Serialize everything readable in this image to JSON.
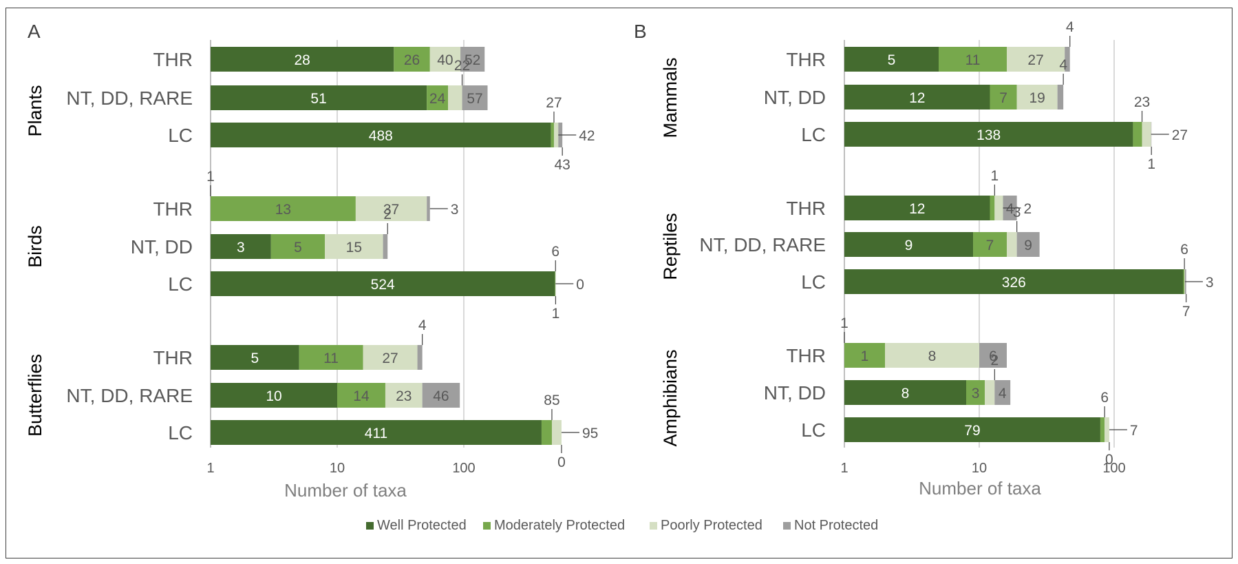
{
  "colors": {
    "well": "#446b2f",
    "moderate": "#77a84c",
    "poor": "#d5dfc3",
    "not": "#9e9e9e",
    "grid": "#d9d9d9"
  },
  "legend": [
    "Well Protected",
    "Moderately Protected",
    "Poorly Protected",
    "Not Protected"
  ],
  "chart_data": [
    {
      "panel": "A",
      "type": "bar",
      "orientation": "horizontal",
      "stacked": true,
      "xscale": "log10",
      "xlim": [
        1,
        1000
      ],
      "xticks": [
        "1",
        "10",
        "100"
      ],
      "xlabel": "Number of taxa",
      "series": [
        "Well Protected",
        "Moderately Protected",
        "Poorly Protected",
        "Not Protected"
      ],
      "groups": [
        {
          "name": "Plants",
          "rows": [
            {
              "category": "THR",
              "values": [
                28,
                26,
                40,
                52
              ]
            },
            {
              "category": "NT, DD, RARE",
              "values": [
                51,
                24,
                22,
                57
              ]
            },
            {
              "category": "LC",
              "values": [
                488,
                27,
                42,
                43
              ]
            }
          ]
        },
        {
          "name": "Birds",
          "rows": [
            {
              "category": "THR",
              "values": [
                1,
                13,
                37,
                3
              ]
            },
            {
              "category": "NT, DD",
              "values": [
                3,
                5,
                15,
                2
              ]
            },
            {
              "category": "LC",
              "values": [
                524,
                6,
                0,
                1
              ]
            }
          ]
        },
        {
          "name": "Butterflies",
          "rows": [
            {
              "category": "THR",
              "values": [
                5,
                11,
                27,
                4
              ]
            },
            {
              "category": "NT, DD, RARE",
              "values": [
                10,
                14,
                23,
                46
              ]
            },
            {
              "category": "LC",
              "values": [
                411,
                85,
                95,
                0
              ]
            }
          ]
        }
      ]
    },
    {
      "panel": "B",
      "type": "bar",
      "orientation": "horizontal",
      "stacked": true,
      "xscale": "log10",
      "xlim": [
        1,
        1000
      ],
      "xticks": [
        "1",
        "10",
        "100"
      ],
      "xlabel": "Number of taxa",
      "series": [
        "Well Protected",
        "Moderately Protected",
        "Poorly Protected",
        "Not Protected"
      ],
      "groups": [
        {
          "name": "Mammals",
          "rows": [
            {
              "category": "THR",
              "values": [
                5,
                11,
                27,
                4
              ]
            },
            {
              "category": "NT, DD",
              "values": [
                12,
                7,
                19,
                4
              ]
            },
            {
              "category": "LC",
              "values": [
                138,
                23,
                27,
                1
              ]
            }
          ]
        },
        {
          "name": "Reptiles",
          "rows": [
            {
              "category": "THR",
              "values": [
                12,
                1,
                2,
                4
              ]
            },
            {
              "category": "NT, DD, RARE",
              "values": [
                9,
                7,
                3,
                9
              ]
            },
            {
              "category": "LC",
              "values": [
                326,
                6,
                3,
                7
              ]
            }
          ]
        },
        {
          "name": "Amphibians",
          "rows": [
            {
              "category": "THR",
              "values": [
                1,
                1,
                8,
                6
              ]
            },
            {
              "category": "NT, DD",
              "values": [
                8,
                3,
                2,
                4
              ]
            },
            {
              "category": "LC",
              "values": [
                79,
                6,
                7,
                0
              ]
            }
          ]
        }
      ]
    }
  ]
}
